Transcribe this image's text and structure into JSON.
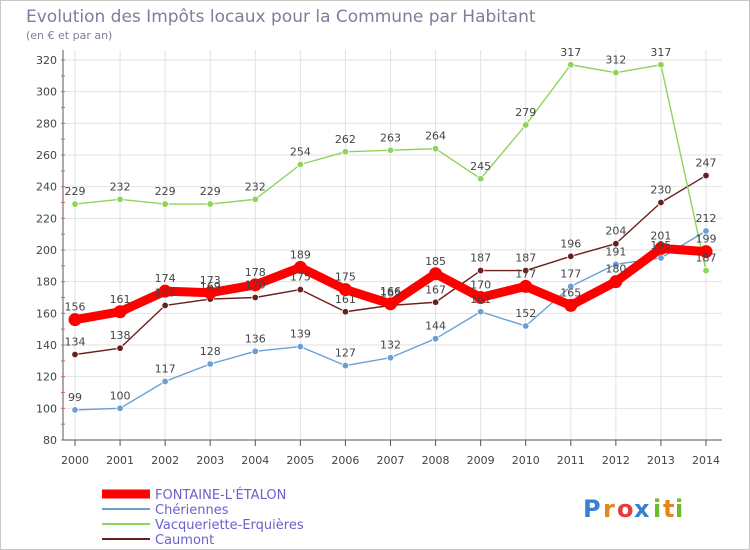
{
  "chart_data": {
    "type": "line",
    "title": "Evolution des Impôts locaux pour la Commune par Habitant",
    "subtitle": "(en € et par an)",
    "x": [
      "2000",
      "2001",
      "2002",
      "2003",
      "2004",
      "2005",
      "2006",
      "2007",
      "2008",
      "2009",
      "2010",
      "2011",
      "2012",
      "2013",
      "2014"
    ],
    "ylim": [
      80,
      320
    ],
    "yticks": [
      80,
      100,
      120,
      140,
      160,
      180,
      200,
      220,
      240,
      260,
      280,
      300,
      320
    ],
    "grid": true,
    "legend_position": "bottom-left",
    "series": [
      {
        "name": "FONTAINE-L'ÉTALON",
        "color": "#ff0000",
        "values": [
          156,
          161,
          174,
          173,
          178,
          189,
          175,
          166,
          185,
          170,
          177,
          165,
          180,
          201,
          199
        ]
      },
      {
        "name": "Chériennes",
        "color": "#6a9fd4",
        "values": [
          99,
          100,
          117,
          128,
          136,
          139,
          127,
          132,
          144,
          161,
          152,
          177,
          191,
          195,
          212
        ]
      },
      {
        "name": "Vacqueriette-Erquières",
        "color": "#8fd45a",
        "values": [
          229,
          232,
          229,
          229,
          232,
          254,
          262,
          263,
          264,
          245,
          279,
          317,
          312,
          317,
          187
        ]
      },
      {
        "name": "Caumont",
        "color": "#6b1e1e",
        "values": [
          134,
          138,
          165,
          169,
          170,
          175,
          161,
          165,
          167,
          187,
          187,
          196,
          204,
          230,
          247
        ]
      }
    ]
  },
  "brand": {
    "text": "Proxiti",
    "letters": [
      "P",
      "r",
      "o",
      "x",
      "i",
      "t",
      "i"
    ],
    "colors": [
      "#3a7fd0",
      "#e8841a",
      "#e83a3a",
      "#3a7fd0",
      "#6cbb2a",
      "#e8841a",
      "#6cbb2a"
    ]
  }
}
